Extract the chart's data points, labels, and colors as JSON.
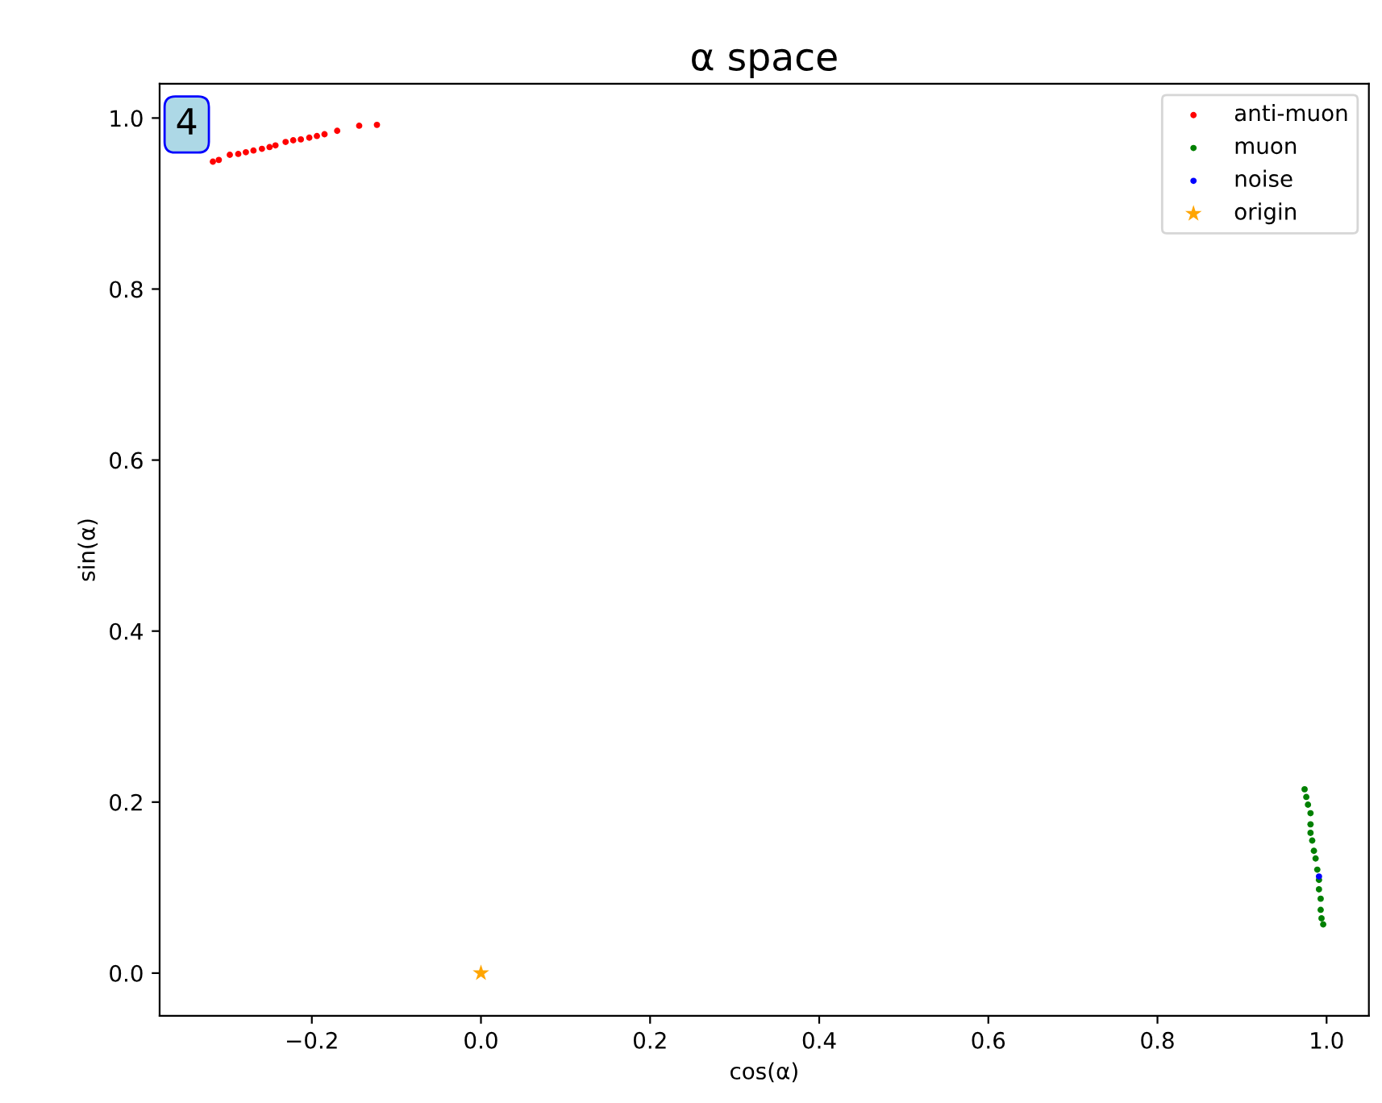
{
  "chart_data": {
    "type": "scatter",
    "title": "α space",
    "xlabel": "cos(α)",
    "ylabel": "sin(α)",
    "annotations": [
      "4"
    ],
    "xlim": [
      -0.38,
      1.05
    ],
    "ylim": [
      -0.05,
      1.04
    ],
    "xticks": [
      {
        "value": -0.2,
        "label": "−0.2"
      },
      {
        "value": 0,
        "label": "0.0"
      },
      0.2,
      0.4,
      0.6,
      0.8,
      {
        "value": 1,
        "label": "1.0"
      }
    ],
    "yticks": [
      {
        "value": 0,
        "label": "0.0"
      },
      0.2,
      0.4,
      0.6,
      0.8,
      {
        "value": 1,
        "label": "1.0"
      }
    ],
    "grid": false,
    "legend": "top right",
    "series": [
      {
        "name": "anti-muon",
        "color": "#ff0000",
        "marker": "circle",
        "x": [
          -0.317,
          -0.31,
          -0.297,
          -0.287,
          -0.278,
          -0.269,
          -0.259,
          -0.25,
          -0.243,
          -0.231,
          -0.222,
          -0.213,
          -0.203,
          -0.194,
          -0.185,
          -0.17,
          -0.144,
          -0.123
        ],
        "values": [
          0.949,
          0.951,
          0.957,
          0.958,
          0.96,
          0.962,
          0.964,
          0.966,
          0.968,
          0.972,
          0.974,
          0.975,
          0.977,
          0.979,
          0.981,
          0.985,
          0.991,
          0.992
        ]
      },
      {
        "name": "muon",
        "color": "#008000",
        "marker": "circle",
        "x": [
          0.974,
          0.976,
          0.978,
          0.981,
          0.981,
          0.981,
          0.983,
          0.985,
          0.987,
          0.989,
          0.991,
          0.991,
          0.993,
          0.993,
          0.994,
          0.996
        ],
        "values": [
          0.215,
          0.206,
          0.197,
          0.187,
          0.174,
          0.164,
          0.155,
          0.143,
          0.134,
          0.121,
          0.109,
          0.098,
          0.087,
          0.074,
          0.064,
          0.057
        ]
      },
      {
        "name": "noise",
        "color": "#0000ff",
        "marker": "circle",
        "x": [
          0.991
        ],
        "values": [
          0.113
        ]
      },
      {
        "name": "origin",
        "color": "#ffa500",
        "marker": "star",
        "x": [
          0.0
        ],
        "values": [
          0.0
        ]
      }
    ]
  }
}
